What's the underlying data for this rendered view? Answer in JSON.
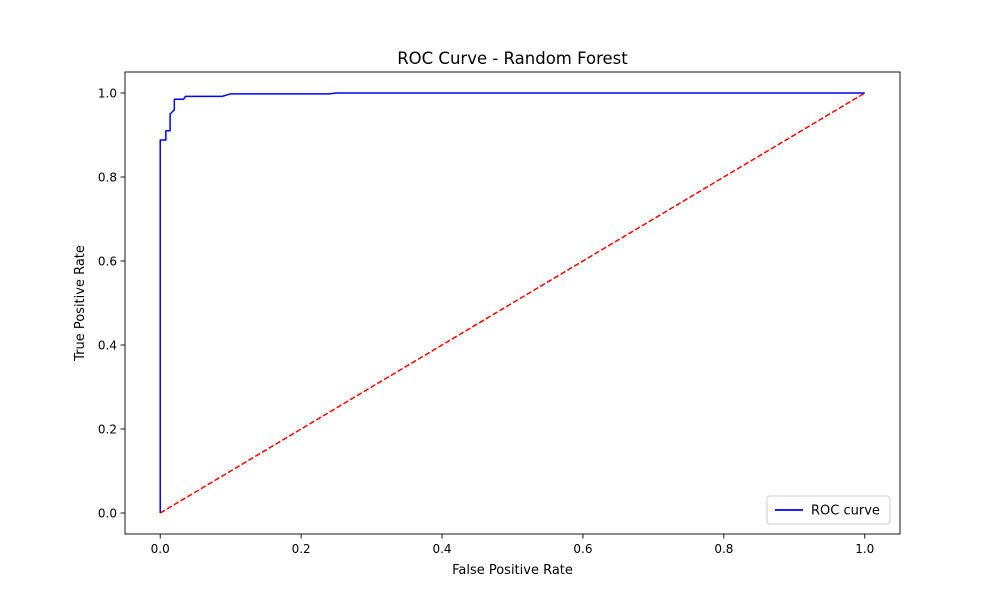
{
  "chart_data": {
    "type": "line",
    "title": "ROC Curve - Random Forest",
    "xlabel": "False Positive Rate",
    "ylabel": "True Positive Rate",
    "xlim": [
      -0.05,
      1.05
    ],
    "ylim": [
      -0.05,
      1.05
    ],
    "xticks": [
      "0.0",
      "0.2",
      "0.4",
      "0.6",
      "0.8",
      "1.0"
    ],
    "yticks": [
      "0.0",
      "0.2",
      "0.4",
      "0.6",
      "0.8",
      "1.0"
    ],
    "grid": false,
    "legend": {
      "position": "lower-right",
      "entries": [
        "ROC curve"
      ]
    },
    "series": [
      {
        "name": "ROC curve",
        "color": "#0000ff",
        "style": "solid",
        "x": [
          0.0,
          0.0,
          0.0,
          0.008,
          0.008,
          0.014,
          0.014,
          0.02,
          0.02,
          0.033,
          0.036,
          0.088,
          0.1,
          0.24,
          0.25,
          1.0
        ],
        "y": [
          0.0,
          0.0,
          0.888,
          0.888,
          0.91,
          0.91,
          0.95,
          0.96,
          0.985,
          0.985,
          0.992,
          0.992,
          0.998,
          0.998,
          1.0,
          1.0
        ]
      },
      {
        "name": "",
        "color": "#ff0000",
        "style": "dashed",
        "x": [
          0.0,
          1.0
        ],
        "y": [
          0.0,
          1.0
        ]
      }
    ]
  }
}
